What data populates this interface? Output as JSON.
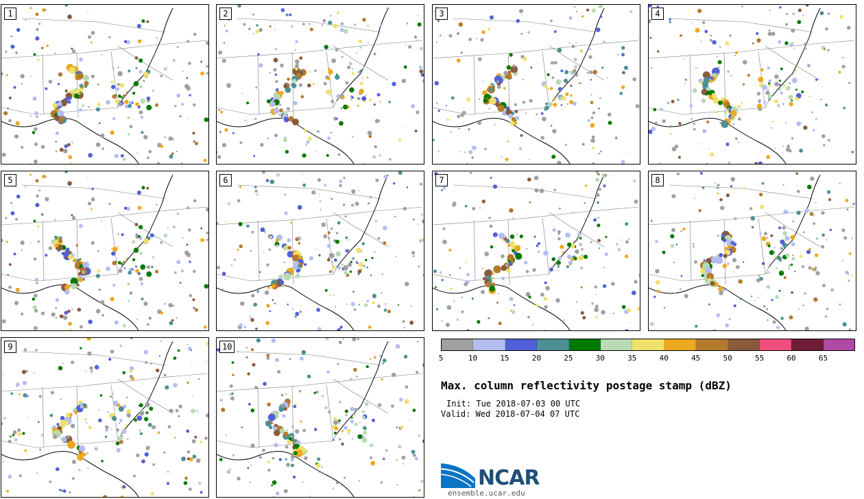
{
  "panels": [
    {
      "label": "1"
    },
    {
      "label": "2"
    },
    {
      "label": "3"
    },
    {
      "label": "4"
    },
    {
      "label": "5"
    },
    {
      "label": "6"
    },
    {
      "label": "7"
    },
    {
      "label": "8"
    },
    {
      "label": "9"
    },
    {
      "label": "10"
    }
  ],
  "colorbar": {
    "colors": [
      "#a0a0a0",
      "#b4bdf0",
      "#5260d8",
      "#4c9094",
      "#007a00",
      "#b8dab4",
      "#f0e06c",
      "#eca81e",
      "#b47a2e",
      "#8a5a3c",
      "#f04e7c",
      "#6e1c38",
      "#ae4aa4"
    ],
    "ticks": [
      "5",
      "10",
      "15",
      "20",
      "25",
      "30",
      "35",
      "40",
      "45",
      "50",
      "55",
      "60",
      "65"
    ]
  },
  "title": "Max. column reflectivity postage stamp (dBZ)",
  "init": "Init: Tue 2018-07-03 00 UTC",
  "valid": "Valid: Wed 2018-07-04 07 UTC",
  "logo": {
    "name": "NCAR",
    "url": "ensemble.ucar.edu"
  }
}
